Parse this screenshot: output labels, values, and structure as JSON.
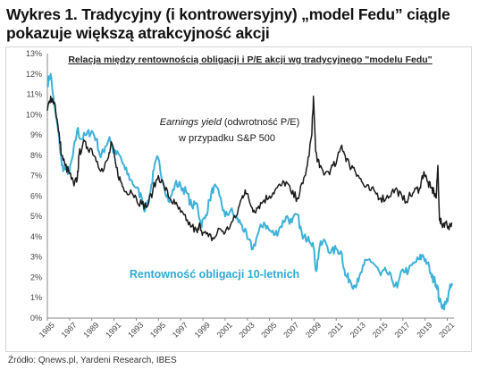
{
  "heading": {
    "line1": "Wykres 1. Tradycyjny (i kontrowersyjny) „model Fedu” ciągle",
    "line2": "pokazuje większą atrakcyjność akcji"
  },
  "source": "Źródło: Qnews.pl, Yardeni Research, IBES",
  "colors": {
    "earnings_yield": "#1a1a1a",
    "bond_yield": "#3eb1d8",
    "bond_label": "#31a9d3",
    "axis": "#888888"
  },
  "chart_data": {
    "type": "line",
    "title": "Relacja między rentownością obligacji i P/E akcji wg tradycyjnego \"modelu Fedu\"",
    "grid": false,
    "ylim": [
      0,
      13
    ],
    "xlim": [
      1985,
      2021.6
    ],
    "y_ticks": [
      "0%",
      "1%",
      "2%",
      "3%",
      "4%",
      "5%",
      "6%",
      "7%",
      "8%",
      "9%",
      "10%",
      "11%",
      "12%",
      "13%"
    ],
    "x_ticks": [
      "1985",
      "1987",
      "1989",
      "1991",
      "1993",
      "1995",
      "1997",
      "1999",
      "2001",
      "2003",
      "2005",
      "2007",
      "2009",
      "2011",
      "2013",
      "2015",
      "2017",
      "2019",
      "2021"
    ],
    "annotations": {
      "earnings_label_italic": "Earnings yield",
      "earnings_label_rest": " (odwrotność P/E)",
      "earnings_label_line2": "w przypadku S&P 500",
      "bond_label": "Rentowność obligacji 10-letnich"
    },
    "series": [
      {
        "key": "earnings_yield",
        "x": [
          1985.0,
          1985.3,
          1985.7,
          1986.0,
          1986.3,
          1986.6,
          1987.0,
          1987.4,
          1987.7,
          1987.85,
          1988.2,
          1988.6,
          1989.0,
          1989.5,
          1990.0,
          1990.5,
          1990.8,
          1991.2,
          1991.6,
          1992.0,
          1992.5,
          1993.0,
          1993.5,
          1994.0,
          1994.5,
          1995.0,
          1995.5,
          1996.0,
          1996.5,
          1997.0,
          1997.5,
          1998.0,
          1998.5,
          1998.75,
          1999.0,
          1999.5,
          2000.0,
          2000.5,
          2001.0,
          2001.5,
          2002.0,
          2002.5,
          2002.8,
          2003.2,
          2003.6,
          2004.0,
          2004.5,
          2005.0,
          2005.5,
          2006.0,
          2006.5,
          2007.0,
          2007.5,
          2008.0,
          2008.4,
          2008.8,
          2008.95,
          2009.15,
          2009.5,
          2010.0,
          2010.5,
          2011.0,
          2011.5,
          2011.8,
          2012.2,
          2012.6,
          2013.0,
          2013.5,
          2014.0,
          2014.5,
          2015.0,
          2015.5,
          2016.0,
          2016.5,
          2017.0,
          2017.5,
          2018.0,
          2018.5,
          2018.9,
          2019.2,
          2019.5,
          2019.8,
          2020.0,
          2020.15,
          2020.3,
          2020.5,
          2020.8,
          2021.1,
          2021.4
        ],
        "values": [
          10.2,
          10.9,
          10.5,
          9.2,
          8.0,
          7.5,
          7.1,
          6.5,
          6.9,
          8.0,
          8.6,
          8.4,
          8.3,
          7.7,
          7.2,
          7.9,
          8.6,
          7.4,
          6.7,
          6.2,
          6.3,
          5.9,
          5.6,
          5.5,
          6.3,
          7.0,
          6.5,
          5.9,
          5.6,
          5.2,
          4.8,
          4.5,
          4.2,
          4.6,
          4.2,
          4.0,
          3.9,
          4.4,
          4.2,
          4.6,
          5.0,
          5.9,
          6.3,
          5.7,
          5.3,
          5.5,
          5.8,
          6.0,
          6.3,
          6.5,
          6.7,
          6.1,
          5.9,
          6.6,
          7.5,
          9.0,
          10.9,
          8.2,
          7.4,
          7.1,
          7.3,
          7.6,
          8.5,
          8.0,
          7.5,
          7.4,
          7.0,
          6.5,
          6.3,
          6.2,
          5.9,
          5.9,
          6.2,
          6.3,
          5.8,
          5.9,
          6.2,
          6.4,
          7.2,
          6.7,
          6.4,
          6.2,
          5.9,
          7.5,
          4.8,
          4.6,
          4.7,
          4.5,
          4.7
        ]
      },
      {
        "key": "bond_yield",
        "x": [
          1985.0,
          1985.3,
          1985.6,
          1986.0,
          1986.3,
          1986.6,
          1987.0,
          1987.3,
          1987.7,
          1988.0,
          1988.5,
          1989.0,
          1989.4,
          1989.8,
          1990.2,
          1990.6,
          1991.0,
          1991.5,
          1992.0,
          1992.5,
          1993.0,
          1993.5,
          1993.8,
          1994.2,
          1994.6,
          1994.95,
          1995.5,
          1996.0,
          1996.5,
          1997.0,
          1997.5,
          1998.0,
          1998.5,
          1998.8,
          1999.2,
          1999.6,
          2000.0,
          2000.5,
          2001.0,
          2001.5,
          2002.0,
          2002.5,
          2003.0,
          2003.5,
          2004.0,
          2004.5,
          2005.0,
          2005.5,
          2006.0,
          2006.5,
          2007.0,
          2007.5,
          2008.0,
          2008.5,
          2008.9,
          2009.2,
          2009.5,
          2010.0,
          2010.5,
          2011.0,
          2011.5,
          2011.8,
          2012.2,
          2012.6,
          2013.0,
          2013.5,
          2014.0,
          2014.5,
          2015.0,
          2015.5,
          2016.0,
          2016.5,
          2017.0,
          2017.5,
          2018.0,
          2018.5,
          2018.8,
          2019.2,
          2019.6,
          2019.9,
          2020.1,
          2020.3,
          2020.6,
          2020.9,
          2021.2,
          2021.45
        ],
        "values": [
          11.5,
          12.0,
          10.5,
          9.1,
          7.5,
          7.3,
          7.2,
          8.0,
          9.3,
          8.8,
          9.0,
          9.2,
          8.8,
          7.9,
          8.4,
          8.9,
          8.1,
          8.0,
          7.3,
          6.8,
          6.4,
          5.9,
          5.3,
          6.0,
          7.3,
          7.9,
          6.5,
          5.7,
          6.6,
          6.5,
          6.2,
          5.5,
          5.6,
          4.6,
          4.9,
          5.8,
          6.5,
          6.0,
          5.0,
          5.3,
          4.9,
          4.6,
          3.9,
          3.4,
          4.2,
          4.7,
          4.3,
          4.1,
          4.5,
          5.0,
          4.7,
          5.1,
          3.9,
          4.0,
          3.7,
          2.3,
          3.5,
          3.8,
          3.2,
          3.4,
          3.2,
          2.1,
          1.9,
          1.6,
          1.8,
          2.6,
          2.9,
          2.6,
          2.1,
          2.3,
          1.9,
          1.5,
          2.4,
          2.3,
          2.7,
          2.9,
          3.1,
          2.7,
          2.0,
          1.8,
          1.6,
          0.8,
          0.6,
          0.7,
          1.4,
          1.6
        ]
      }
    ]
  }
}
